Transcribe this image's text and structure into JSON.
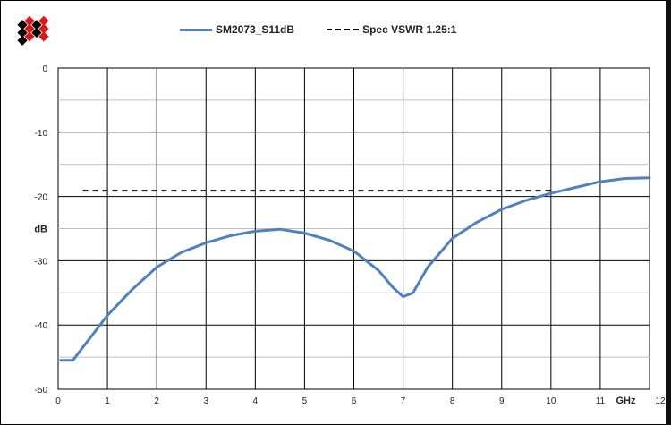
{
  "chart_data": {
    "type": "line",
    "title": "",
    "xlabel": "GHz",
    "ylabel": "dB",
    "xlim": [
      0,
      12
    ],
    "ylim": [
      -50,
      0
    ],
    "xticks": [
      0,
      1,
      2,
      3,
      4,
      5,
      6,
      7,
      8,
      9,
      10,
      11,
      12
    ],
    "yticks": [
      0,
      -10,
      -20,
      -30,
      -40,
      -50
    ],
    "grid": true,
    "legend_position": "top",
    "series": [
      {
        "name": "SM2073_S11dB",
        "color": "#4f81bd",
        "style": "solid",
        "x": [
          0.05,
          0.3,
          0.5,
          0.8,
          1.0,
          1.5,
          2.0,
          2.5,
          3.0,
          3.5,
          4.0,
          4.5,
          5.0,
          5.5,
          6.0,
          6.5,
          6.8,
          7.0,
          7.2,
          7.5,
          8.0,
          8.5,
          9.0,
          9.5,
          10.0,
          10.5,
          11.0,
          11.5,
          12.0
        ],
        "y": [
          -45.5,
          -45.5,
          -43.5,
          -40.5,
          -38.5,
          -34.5,
          -31.0,
          -28.7,
          -27.2,
          -26.1,
          -25.4,
          -25.1,
          -25.7,
          -26.8,
          -28.5,
          -31.5,
          -34.2,
          -35.6,
          -35.0,
          -31.0,
          -26.5,
          -24.0,
          -22.0,
          -20.6,
          -19.5,
          -18.6,
          -17.7,
          -17.2,
          -17.1
        ]
      },
      {
        "name": "Spec VSWR 1.25:1",
        "color": "#000000",
        "style": "dashed",
        "x": [
          0.5,
          10.0
        ],
        "y": [
          -19.1,
          -19.1
        ]
      }
    ]
  },
  "legend": {
    "solid_label": "SM2073_S11dB",
    "dash_label": "Spec VSWR 1.25:1"
  },
  "logo": {
    "colors": [
      "#d7191c",
      "#000000"
    ]
  }
}
